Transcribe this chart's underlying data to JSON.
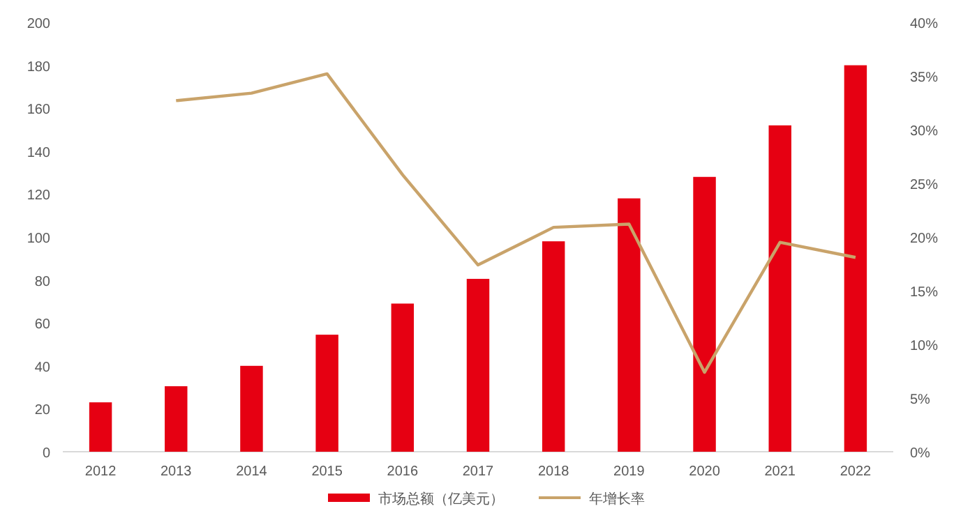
{
  "chart_data": {
    "type": "bar",
    "categories": [
      "2012",
      "2013",
      "2014",
      "2015",
      "2016",
      "2017",
      "2018",
      "2019",
      "2020",
      "2021",
      "2022"
    ],
    "series": [
      {
        "name": "市场总额（亿美元）",
        "color": "#e60012",
        "values": [
          23,
          30.5,
          40,
          54.5,
          69,
          80.5,
          98,
          118,
          128,
          152,
          180
        ]
      },
      {
        "name": "年增长率",
        "type": "line",
        "axis": "y2",
        "color": "#c9a36a",
        "values": [
          null,
          32.7,
          33.4,
          35.2,
          25.8,
          17.4,
          20.9,
          21.2,
          7.4,
          19.5,
          18.1
        ]
      }
    ],
    "ylim": [
      0,
      200
    ],
    "yticks": [
      0,
      20,
      40,
      60,
      80,
      100,
      120,
      140,
      160,
      180,
      200
    ],
    "y2lim": [
      0,
      40
    ],
    "y2ticks": [
      {
        "value": 0,
        "label": "0%"
      },
      {
        "value": 5,
        "label": "5%"
      },
      {
        "value": 10,
        "label": "10%"
      },
      {
        "value": 15,
        "label": "15%"
      },
      {
        "value": 20,
        "label": "20%"
      },
      {
        "value": 25,
        "label": "25%"
      },
      {
        "value": 30,
        "label": "30%"
      },
      {
        "value": 35,
        "label": "35%"
      },
      {
        "value": 40,
        "label": "40%"
      }
    ],
    "legend": "bottom"
  }
}
